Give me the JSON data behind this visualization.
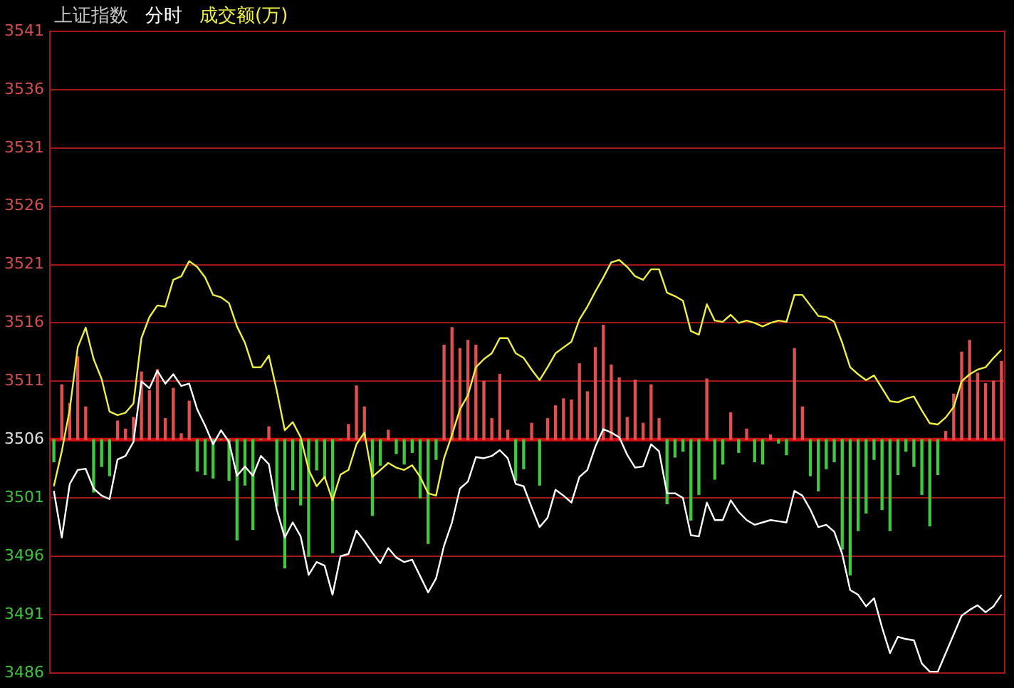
{
  "chart_data": {
    "type": "line",
    "title": "上证指数",
    "subtitle": "分时",
    "grid": "y",
    "tick_labels": "y",
    "marker": "none",
    "line_style": "solid",
    "categories": [
      null,
      null,
      null,
      null,
      null,
      null,
      null,
      null,
      null,
      null,
      null,
      null,
      null,
      null,
      null,
      null,
      null,
      null,
      null,
      null,
      null,
      null,
      null,
      null,
      null,
      null,
      null,
      null,
      null,
      null,
      null,
      null,
      null,
      null,
      null,
      null,
      null,
      null,
      null,
      null,
      null,
      null,
      null,
      null,
      null,
      null,
      null,
      null,
      null,
      null,
      null,
      null,
      null,
      null,
      null,
      null,
      null,
      null,
      null,
      null,
      null,
      null,
      null,
      null,
      null,
      null,
      null,
      null,
      null,
      null,
      null,
      null,
      null,
      null,
      null,
      null,
      null,
      null,
      null,
      null,
      null,
      null,
      null,
      null,
      null,
      null,
      null,
      null,
      null,
      null,
      null,
      null,
      null,
      null,
      null,
      null,
      null,
      null,
      null,
      null,
      null,
      null,
      null,
      null,
      null,
      null,
      null,
      null,
      null,
      null,
      null,
      null,
      null,
      null,
      null,
      null,
      null,
      null,
      null,
      null
    ],
    "ylim": [
      3486,
      3541
    ],
    "yticks": [
      3486,
      3491,
      3496,
      3501,
      3506,
      3511,
      3516,
      3521,
      3526,
      3531,
      3536,
      3541
    ],
    "ref_lines": [
      {
        "axis": "y",
        "value": 3506,
        "color": "#d01010"
      }
    ],
    "series": [
      {
        "type": "bar",
        "values": [
          -1.9,
          4.7,
          3.1,
          7.1,
          2.8,
          -4.5,
          -2.3,
          -3.1,
          1.6,
          0.9,
          1.9,
          5.8,
          4.2,
          6.0,
          1.8,
          4.4,
          0.5,
          3.3,
          -2.7,
          -3.0,
          -3.3,
          0,
          -3.5,
          -8.6,
          -3.9,
          -7.7,
          0,
          1.1,
          -5.7,
          -11.0,
          -4.3,
          -5.6,
          -10.0,
          -2.6,
          -3.3,
          -9.7,
          0,
          1.3,
          4.6,
          2.8,
          -6.5,
          -2.2,
          0.8,
          -1.2,
          -2.1,
          -1.1,
          -5.0,
          -8.9,
          -1.7,
          8.1,
          9.6,
          7.8,
          8.5,
          8.1,
          5.0,
          1.8,
          5.6,
          0.8,
          -3.5,
          -2.5,
          1.4,
          -3.9,
          1.8,
          2.9,
          3.5,
          3.4,
          6.5,
          4.1,
          7.9,
          9.8,
          6.4,
          5.3,
          1.9,
          5.1,
          1.4,
          4.7,
          1.8,
          -5.5,
          -1.5,
          -1.0,
          -6.9,
          -4.7,
          5.2,
          -3.4,
          -2.1,
          2.3,
          -1.1,
          0.9,
          -1.9,
          -2.1,
          0.4,
          -0.3,
          -1.3,
          7.8,
          2.8,
          -3.1,
          -4.4,
          -2.5,
          -1.9,
          -9.4,
          -11.6,
          -7.8,
          -6.3,
          -1.7,
          -6.0,
          -7.8,
          -3.0,
          -1.0,
          -2.3,
          -4.7,
          -7.4,
          -3.0,
          0.7,
          3.9,
          7.5,
          8.5,
          5.7,
          4.8,
          5.0,
          6.7
        ],
        "base": [
          3506,
          3506,
          3506,
          3506,
          3506,
          3506,
          3506,
          3506,
          3506,
          3506,
          3506,
          3506,
          3506,
          3506,
          3506,
          3506,
          3506,
          3506,
          3506,
          3506,
          3506,
          3506,
          3506,
          3506,
          3506,
          3506,
          3506,
          3506,
          3506,
          3506,
          3506,
          3506,
          3506,
          3506,
          3506,
          3506,
          3506,
          3506,
          3506,
          3506,
          3506,
          3506,
          3506,
          3506,
          3506,
          3506,
          3506,
          3506,
          3506,
          3506,
          3506,
          3506,
          3506,
          3506,
          3506,
          3506,
          3506,
          3506,
          3506,
          3506,
          3506,
          3506,
          3506,
          3506,
          3506,
          3506,
          3506,
          3506,
          3506,
          3506,
          3506,
          3506,
          3506,
          3506,
          3506,
          3506,
          3506,
          3506,
          3506,
          3506,
          3506,
          3506,
          3506,
          3506,
          3506,
          3506,
          3506,
          3506,
          3506,
          3506,
          3506,
          3506,
          3506,
          3506,
          3506,
          3506,
          3506,
          3506,
          3506,
          3506,
          3506,
          3506,
          3506,
          3506,
          3506,
          3506,
          3506,
          3506,
          3506,
          3506,
          3506,
          3506,
          3506,
          3506,
          3506,
          3506,
          3506,
          3506,
          3506,
          3506
        ],
        "colors": [
          "#40c840",
          "#e05050",
          "#e05050",
          "#e05050",
          "#e05050",
          "#40c840",
          "#40c840",
          "#40c840",
          "#e05050",
          "#e05050",
          "#e05050",
          "#e05050",
          "#e05050",
          "#e05050",
          "#e05050",
          "#e05050",
          "#e05050",
          "#e05050",
          "#40c840",
          "#40c840",
          "#40c840",
          "#40c840",
          "#40c840",
          "#40c840",
          "#40c840",
          "#40c840",
          "#40c840",
          "#e05050",
          "#40c840",
          "#40c840",
          "#40c840",
          "#40c840",
          "#40c840",
          "#40c840",
          "#40c840",
          "#40c840",
          "#40c840",
          "#e05050",
          "#e05050",
          "#e05050",
          "#40c840",
          "#40c840",
          "#e05050",
          "#40c840",
          "#40c840",
          "#40c840",
          "#40c840",
          "#40c840",
          "#40c840",
          "#e05050",
          "#e05050",
          "#e05050",
          "#e05050",
          "#e05050",
          "#e05050",
          "#e05050",
          "#e05050",
          "#e05050",
          "#40c840",
          "#40c840",
          "#e05050",
          "#40c840",
          "#e05050",
          "#e05050",
          "#e05050",
          "#e05050",
          "#e05050",
          "#e05050",
          "#e05050",
          "#e05050",
          "#e05050",
          "#e05050",
          "#e05050",
          "#e05050",
          "#e05050",
          "#e05050",
          "#e05050",
          "#40c840",
          "#40c840",
          "#40c840",
          "#40c840",
          "#40c840",
          "#e05050",
          "#40c840",
          "#40c840",
          "#e05050",
          "#40c840",
          "#e05050",
          "#40c840",
          "#40c840",
          "#e05050",
          "#40c840",
          "#40c840",
          "#e05050",
          "#e05050",
          "#40c840",
          "#40c840",
          "#40c840",
          "#40c840",
          "#40c840",
          "#40c840",
          "#40c840",
          "#40c840",
          "#40c840",
          "#40c840",
          "#40c840",
          "#40c840",
          "#40c840",
          "#40c840",
          "#40c840",
          "#40c840",
          "#40c840",
          "#e05050",
          "#e05050",
          "#e05050",
          "#e05050",
          "#e05050",
          "#e05050",
          "#e05050",
          "#e05050"
        ]
      },
      {
        "color": "#ffffff",
        "values": [
          3501.6,
          3497.6,
          3502.2,
          3503.4,
          3503.5,
          3501.8,
          3501.2,
          3500.9,
          3504.3,
          3504.6,
          3505.8,
          3511.0,
          3510.4,
          3511.9,
          3510.8,
          3511.6,
          3510.6,
          3510.8,
          3508.6,
          3507.2,
          3505.6,
          3506.8,
          3505.8,
          3502.9,
          3503.7,
          3502.9,
          3504.6,
          3503.9,
          3500.0,
          3497.6,
          3498.9,
          3497.7,
          3494.4,
          3495.5,
          3495.2,
          3492.7,
          3496.0,
          3496.2,
          3498.2,
          3497.3,
          3496.3,
          3495.4,
          3496.7,
          3495.9,
          3495.5,
          3495.7,
          3494.3,
          3492.9,
          3494.1,
          3496.9,
          3498.9,
          3501.8,
          3502.4,
          3504.5,
          3504.4,
          3504.6,
          3505.1,
          3504.4,
          3502.2,
          3502.0,
          3500.2,
          3498.5,
          3499.3,
          3501.7,
          3501.2,
          3500.6,
          3502.8,
          3503.4,
          3505.4,
          3506.9,
          3506.6,
          3506.2,
          3504.7,
          3503.6,
          3503.7,
          3505.6,
          3505.0,
          3501.4,
          3501.4,
          3501.0,
          3497.8,
          3497.7,
          3500.6,
          3499.1,
          3499.1,
          3500.8,
          3499.8,
          3499.1,
          3498.7,
          3498.9,
          3499.1,
          3499.0,
          3498.9,
          3501.6,
          3501.2,
          3500.0,
          3498.5,
          3498.7,
          3498.1,
          3496.2,
          3493.1,
          3492.7,
          3491.7,
          3492.4,
          3489.9,
          3487.7,
          3489.1,
          3488.9,
          3488.8,
          3486.8,
          3486.1,
          3486.1,
          3487.7,
          3489.3,
          3490.9,
          3491.4,
          3491.8,
          3491.2,
          3491.7,
          3492.7
        ]
      },
      {
        "name": "成交额(万)",
        "color": "#f0f040",
        "values": [
          3502.0,
          3505.0,
          3508.6,
          3513.9,
          3515.6,
          3512.9,
          3511.2,
          3508.4,
          3508.1,
          3508.3,
          3509.1,
          3514.7,
          3516.5,
          3517.5,
          3517.4,
          3519.7,
          3520.0,
          3521.3,
          3520.8,
          3519.9,
          3518.4,
          3518.2,
          3517.7,
          3515.7,
          3514.3,
          3512.2,
          3512.2,
          3513.2,
          3510.2,
          3506.8,
          3507.5,
          3506.2,
          3503.4,
          3502.0,
          3502.8,
          3500.8,
          3503.0,
          3503.4,
          3505.6,
          3506.6,
          3502.8,
          3503.4,
          3504.0,
          3503.6,
          3503.4,
          3503.8,
          3502.8,
          3501.4,
          3501.2,
          3504.4,
          3506.4,
          3508.6,
          3509.8,
          3512.2,
          3512.9,
          3513.4,
          3514.7,
          3514.7,
          3513.4,
          3513.0,
          3512.0,
          3511.1,
          3512.2,
          3513.4,
          3513.9,
          3514.4,
          3516.3,
          3517.4,
          3518.7,
          3519.9,
          3521.2,
          3521.4,
          3520.8,
          3520.0,
          3519.7,
          3520.6,
          3520.6,
          3518.6,
          3518.3,
          3517.9,
          3515.3,
          3515.0,
          3517.6,
          3516.2,
          3516.1,
          3516.7,
          3516.0,
          3516.2,
          3516.0,
          3515.7,
          3516.0,
          3516.2,
          3516.1,
          3518.4,
          3518.4,
          3517.5,
          3516.6,
          3516.5,
          3516.1,
          3514.3,
          3512.2,
          3511.6,
          3511.1,
          3511.5,
          3510.4,
          3509.3,
          3509.2,
          3509.5,
          3509.7,
          3508.5,
          3507.4,
          3507.3,
          3507.9,
          3508.8,
          3511.0,
          3511.6,
          3512.0,
          3512.2,
          3513.0,
          3513.7
        ]
      }
    ]
  }
}
